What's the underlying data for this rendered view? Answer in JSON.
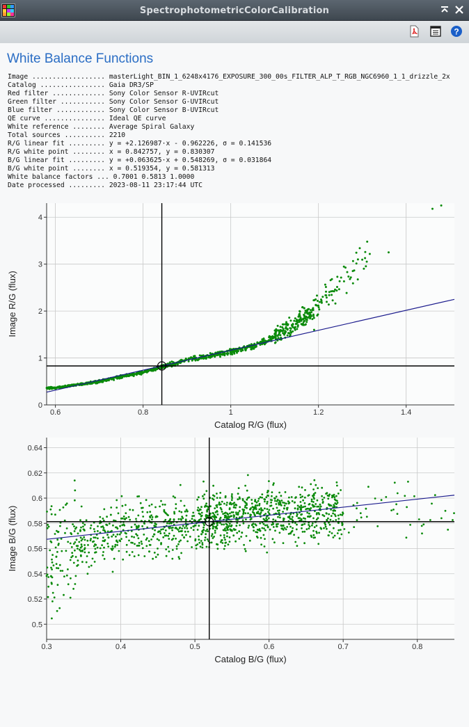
{
  "window": {
    "title": "SpectrophotometricColorCalibration"
  },
  "toolbar": {
    "icons": [
      "pdf-icon",
      "document-icon",
      "help-icon"
    ]
  },
  "report": {
    "heading": "White Balance Functions",
    "info_lines": [
      {
        "label": "Image ..................",
        "value": "masterLight_BIN_1_6248x4176_EXPOSURE_300_00s_FILTER_ALP_T_RGB_NGC6960_1_1_drizzle_2x"
      },
      {
        "label": "Catalog ................",
        "value": "Gaia DR3/SP"
      },
      {
        "label": "Red filter .............",
        "value": "Sony Color Sensor R-UVIRcut"
      },
      {
        "label": "Green filter ...........",
        "value": "Sony Color Sensor G-UVIRcut"
      },
      {
        "label": "Blue filter ............",
        "value": "Sony Color Sensor B-UVIRcut"
      },
      {
        "label": "QE curve ...............",
        "value": "Ideal QE curve"
      },
      {
        "label": "White reference ........",
        "value": "Average Spiral Galaxy"
      },
      {
        "label": "Total sources ..........",
        "value": "2210"
      },
      {
        "label": "R/G linear fit .........",
        "value": "y = +2.126987·x - 0.962226, σ = 0.141536"
      },
      {
        "label": "R/G white point ........",
        "value": "x = 0.842757, y = 0.830307"
      },
      {
        "label": "B/G linear fit .........",
        "value": "y = +0.063625·x + 0.548269, σ = 0.031864"
      },
      {
        "label": "B/G white point ........",
        "value": "x = 0.519354, y = 0.581313"
      },
      {
        "label": "White balance factors ...",
        "value": "0.7001 0.5813 1.0000"
      },
      {
        "label": "Date processed .........",
        "value": "2023-08-11 23:17:44 UTC"
      }
    ]
  },
  "chart_data": [
    {
      "type": "scatter",
      "xlabel": "Catalog R/G (flux)",
      "ylabel": "Image R/G (flux)",
      "xlim": [
        0.58,
        1.51
      ],
      "ylim": [
        0,
        4.3
      ],
      "xticks": [
        "0.6",
        "0.8",
        "1",
        "1.2",
        "1.4"
      ],
      "yticks": [
        "0",
        "1",
        "2",
        "3",
        "4"
      ],
      "grid": true,
      "point_color": "#0a8a0a",
      "fit_color": "#1a1a8c",
      "fit": {
        "slope": 2.126987,
        "intercept": -0.962226
      },
      "white_point": {
        "x": 0.842757,
        "y": 0.830307
      },
      "sources": 2210,
      "sample_points": [
        [
          0.6,
          0.36
        ],
        [
          0.65,
          0.43
        ],
        [
          0.7,
          0.5
        ],
        [
          0.75,
          0.6
        ],
        [
          0.8,
          0.7
        ],
        [
          0.85,
          0.83
        ],
        [
          0.9,
          0.95
        ],
        [
          0.95,
          1.05
        ],
        [
          1.0,
          1.13
        ],
        [
          1.05,
          1.25
        ],
        [
          1.1,
          1.45
        ],
        [
          1.15,
          1.75
        ],
        [
          1.2,
          2.1
        ],
        [
          1.25,
          2.6
        ],
        [
          1.3,
          3.1
        ],
        [
          1.35,
          3.3
        ],
        [
          1.48,
          4.3
        ]
      ]
    },
    {
      "type": "scatter",
      "xlabel": "Catalog B/G (flux)",
      "ylabel": "Image B/G (flux)",
      "xlim": [
        0.3,
        0.85
      ],
      "ylim": [
        0.488,
        0.648
      ],
      "xticks": [
        "0.3",
        "0.4",
        "0.5",
        "0.6",
        "0.7",
        "0.8"
      ],
      "yticks": [
        "0.5",
        "0.52",
        "0.54",
        "0.56",
        "0.58",
        "0.6",
        "0.62",
        "0.64"
      ],
      "grid": true,
      "point_color": "#0a8a0a",
      "fit_color": "#1a1a8c",
      "fit": {
        "slope": 0.063625,
        "intercept": 0.548269
      },
      "white_point": {
        "x": 0.519354,
        "y": 0.581313
      },
      "sources": 2210,
      "sample_points": [
        [
          0.31,
          0.55
        ],
        [
          0.33,
          0.56
        ],
        [
          0.35,
          0.567
        ],
        [
          0.4,
          0.575
        ],
        [
          0.45,
          0.577
        ],
        [
          0.5,
          0.58
        ],
        [
          0.55,
          0.584
        ],
        [
          0.6,
          0.587
        ],
        [
          0.65,
          0.588
        ],
        [
          0.7,
          0.588
        ],
        [
          0.75,
          0.59
        ],
        [
          0.8,
          0.59
        ]
      ]
    }
  ]
}
